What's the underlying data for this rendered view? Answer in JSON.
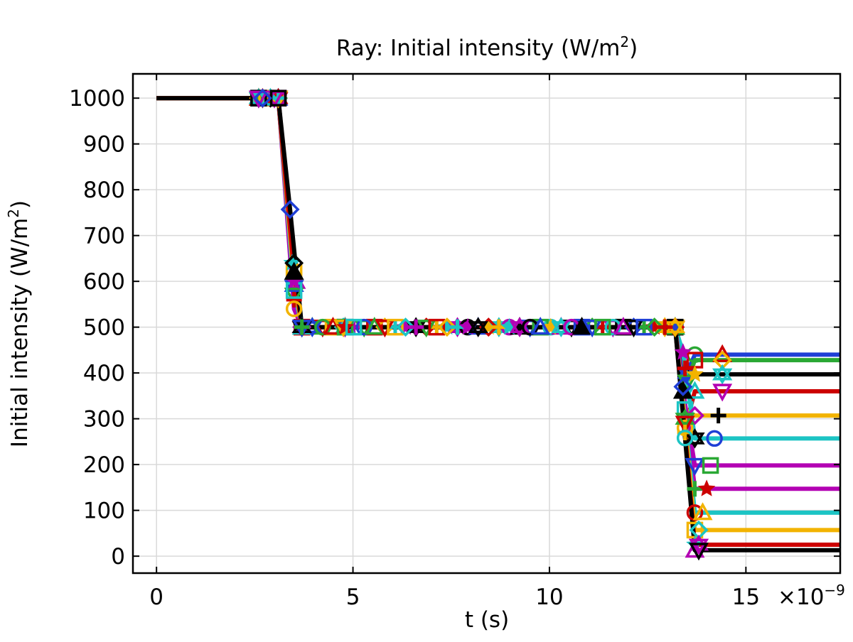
{
  "chart_data": {
    "type": "line",
    "title": "Ray: Initial intensity (W/m",
    "title_superscript": "2",
    "title_suffix": ")",
    "xlabel": "t (s)",
    "ylabel": "Initial intensity (W/m",
    "ylabel_superscript": "2",
    "ylabel_suffix": ")",
    "x_multiplier_text": "×10",
    "x_multiplier_exponent": "−9",
    "x_scale_exponent": -9,
    "xlim": [
      -0.6,
      17.4
    ],
    "ylim": [
      -37,
      1053
    ],
    "xticks": [
      0,
      5,
      10,
      15
    ],
    "xtick_labels": [
      "0",
      "5",
      "10",
      "15"
    ],
    "yticks": [
      0,
      100,
      200,
      300,
      400,
      500,
      600,
      700,
      800,
      900,
      1000
    ],
    "ytick_labels": [
      "0",
      "100",
      "200",
      "300",
      "400",
      "500",
      "600",
      "700",
      "800",
      "900",
      "1000"
    ],
    "grid": true,
    "marker_colors": [
      "#1f3fd6",
      "#2aa834",
      "#cc0000",
      "#f2b300",
      "#1cc4c4",
      "#b300b3",
      "#000000"
    ],
    "marker_shapes": [
      "circle",
      "triangle",
      "triangle-down",
      "square",
      "diamond",
      "plus",
      "star",
      "hexagram"
    ],
    "series": [
      {
        "color": "#1f3fd6",
        "x": [
          0,
          2.6,
          3.1,
          3.5,
          3.7,
          4.8,
          13.2,
          13.5,
          13.7,
          14.4,
          17.4
        ],
        "y": [
          1000,
          1000,
          1000,
          620,
          500,
          500,
          500,
          400,
          440,
          440,
          440
        ]
      },
      {
        "color": "#2aa834",
        "x": [
          0,
          2.6,
          3.1,
          3.45,
          3.7,
          4.8,
          13.2,
          13.5,
          13.7,
          14.4,
          17.4
        ],
        "y": [
          1000,
          1000,
          1000,
          640,
          500,
          500,
          500,
          380,
          428,
          428,
          428
        ]
      },
      {
        "color": "#000000",
        "x": [
          0,
          2.6,
          3.1,
          3.55,
          3.7,
          4.8,
          13.2,
          13.45,
          13.7,
          14.4,
          17.4
        ],
        "y": [
          1000,
          1000,
          1000,
          600,
          500,
          500,
          500,
          410,
          397,
          397,
          397
        ]
      },
      {
        "color": "#cc0000",
        "x": [
          0,
          2.6,
          3.1,
          3.5,
          3.7,
          4.8,
          13.2,
          13.45,
          13.7,
          14.4,
          17.4
        ],
        "y": [
          1000,
          1000,
          1000,
          640,
          500,
          500,
          500,
          280,
          360,
          360,
          360
        ]
      },
      {
        "color": "#f2b300",
        "x": [
          0,
          2.6,
          3.1,
          3.5,
          3.7,
          4.8,
          13.2,
          13.45,
          13.7,
          14.3,
          17.4
        ],
        "y": [
          1000,
          1000,
          1000,
          590,
          500,
          500,
          500,
          320,
          307,
          307,
          307
        ]
      },
      {
        "color": "#1cc4c4",
        "x": [
          0,
          2.6,
          3.1,
          3.5,
          3.7,
          4.8,
          13.2,
          13.4,
          13.7,
          14.2,
          17.4
        ],
        "y": [
          1000,
          1000,
          1000,
          570,
          500,
          500,
          500,
          445,
          257,
          257,
          257
        ]
      },
      {
        "color": "#b300b3",
        "x": [
          0,
          2.6,
          3.1,
          3.5,
          3.7,
          4.8,
          13.2,
          13.4,
          13.7,
          14.1,
          17.4
        ],
        "y": [
          1000,
          1000,
          1000,
          560,
          500,
          500,
          500,
          360,
          198,
          198,
          198
        ]
      },
      {
        "color": "#b300b3",
        "x": [
          0,
          2.6,
          3.1,
          3.5,
          3.7,
          4.8,
          13.2,
          13.4,
          13.7,
          14.0,
          17.4
        ],
        "y": [
          1000,
          1000,
          1000,
          540,
          500,
          500,
          500,
          370,
          147,
          147,
          147
        ]
      },
      {
        "color": "#1cc4c4",
        "x": [
          0,
          2.6,
          3.1,
          3.5,
          3.7,
          4.8,
          13.2,
          13.45,
          13.7,
          13.9,
          17.4
        ],
        "y": [
          1000,
          1000,
          1000,
          580,
          500,
          500,
          500,
          300,
          95,
          95,
          95
        ]
      },
      {
        "color": "#f2b300",
        "x": [
          0,
          2.6,
          3.1,
          3.5,
          3.7,
          4.8,
          13.2,
          13.45,
          13.7,
          13.8,
          17.4
        ],
        "y": [
          1000,
          1000,
          1000,
          600,
          500,
          500,
          500,
          290,
          57,
          57,
          57
        ]
      },
      {
        "color": "#cc0000",
        "x": [
          0,
          2.6,
          3.1,
          3.5,
          3.7,
          4.8,
          13.2,
          13.45,
          13.7,
          13.8,
          17.4
        ],
        "y": [
          1000,
          1000,
          1000,
          620,
          500,
          500,
          500,
          270,
          25,
          25,
          25
        ]
      },
      {
        "color": "#000000",
        "x": [
          0,
          2.6,
          3.1,
          3.4,
          3.7,
          4.8,
          13.2,
          13.45,
          13.7,
          13.8,
          17.4
        ],
        "y": [
          1000,
          1000,
          1000,
          757,
          500,
          500,
          500,
          258,
          13,
          13,
          13
        ]
      }
    ]
  }
}
